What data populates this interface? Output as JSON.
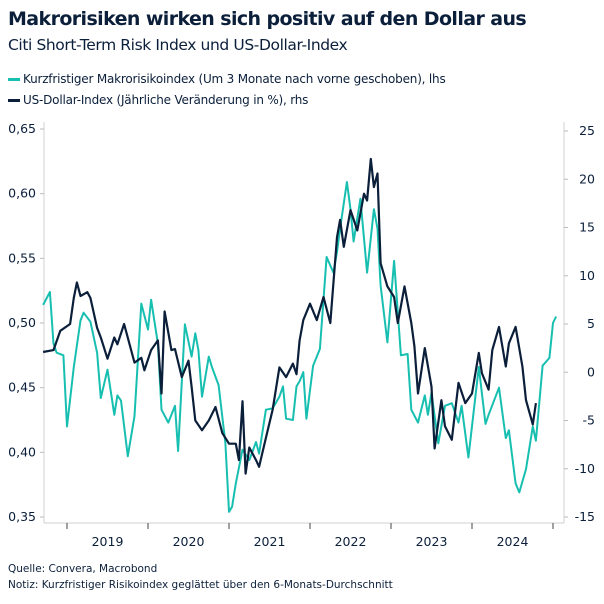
{
  "header": {
    "title": "Makrorisiken wirken sich positiv auf den Dollar aus",
    "subtitle": "Citi Short-Term Risk Index und US-Dollar-Index"
  },
  "footer": {
    "source": "Quelle: Convera, Macrobond",
    "note": "Notiz: Kurzfristiger Risikoindex geglättet über den 6-Monats-Durchschnitt"
  },
  "chart_data": {
    "type": "line",
    "title": "Makrorisiken wirken sich positiv auf den Dollar aus",
    "subtitle": "Citi Short-Term Risk Index und US-Dollar-Index",
    "legend_position": "top-left",
    "grid": false,
    "x_ticks": [
      "2019",
      "2020",
      "2021",
      "2022",
      "2023",
      "2024"
    ],
    "y_left": {
      "lim": [
        0.35,
        0.65
      ],
      "ticks": [
        "0,35",
        "0,40",
        "0,45",
        "0,50",
        "0,55",
        "0,60",
        "0,65"
      ],
      "values": [
        0.35,
        0.4,
        0.45,
        0.5,
        0.55,
        0.6,
        0.65
      ]
    },
    "y_right": {
      "lim": [
        -15,
        25
      ],
      "ticks": [
        "-15",
        "-10",
        "-5",
        "0",
        "5",
        "10",
        "15",
        "20",
        "25"
      ],
      "values": [
        -15,
        -10,
        -5,
        0,
        5,
        10,
        15,
        20,
        25
      ]
    },
    "series": [
      {
        "name": "Kurzfristiger Makrorisikoindex (Um 3 Monate nach vorne geschoben), lhs",
        "axis": "left",
        "color": "#17bfb0",
        "points": [
          [
            "2018-09-15",
            0.514
          ],
          [
            "2018-10-15",
            0.524
          ],
          [
            "2018-11-01",
            0.484
          ],
          [
            "2018-11-15",
            0.477
          ],
          [
            "2018-12-15",
            0.475
          ],
          [
            "2019-01-01",
            0.42
          ],
          [
            "2019-02-01",
            0.466
          ],
          [
            "2019-03-01",
            0.502
          ],
          [
            "2019-03-15",
            0.508
          ],
          [
            "2019-04-15",
            0.501
          ],
          [
            "2019-05-15",
            0.477
          ],
          [
            "2019-06-01",
            0.442
          ],
          [
            "2019-07-01",
            0.464
          ],
          [
            "2019-08-01",
            0.429
          ],
          [
            "2019-08-15",
            0.444
          ],
          [
            "2019-09-01",
            0.44
          ],
          [
            "2019-10-01",
            0.397
          ],
          [
            "2019-11-01",
            0.428
          ],
          [
            "2019-12-01",
            0.515
          ],
          [
            "2020-01-01",
            0.495
          ],
          [
            "2020-01-15",
            0.518
          ],
          [
            "2020-02-15",
            0.484
          ],
          [
            "2020-03-01",
            0.433
          ],
          [
            "2020-04-01",
            0.423
          ],
          [
            "2020-05-01",
            0.436
          ],
          [
            "2020-05-15",
            0.401
          ],
          [
            "2020-06-15",
            0.499
          ],
          [
            "2020-07-15",
            0.474
          ],
          [
            "2020-08-01",
            0.492
          ],
          [
            "2020-08-15",
            0.479
          ],
          [
            "2020-09-01",
            0.443
          ],
          [
            "2020-10-01",
            0.474
          ],
          [
            "2020-10-15",
            0.466
          ],
          [
            "2020-11-15",
            0.452
          ],
          [
            "2020-12-15",
            0.407
          ],
          [
            "2021-01-01",
            0.354
          ],
          [
            "2021-01-15",
            0.358
          ],
          [
            "2021-02-01",
            0.376
          ],
          [
            "2021-03-01",
            0.402
          ],
          [
            "2021-04-01",
            0.394
          ],
          [
            "2021-05-01",
            0.408
          ],
          [
            "2021-05-15",
            0.399
          ],
          [
            "2021-06-15",
            0.433
          ],
          [
            "2021-07-15",
            0.434
          ],
          [
            "2021-08-15",
            0.443
          ],
          [
            "2021-09-01",
            0.451
          ],
          [
            "2021-09-15",
            0.426
          ],
          [
            "2021-10-15",
            0.425
          ],
          [
            "2021-11-01",
            0.451
          ],
          [
            "2021-11-15",
            0.455
          ],
          [
            "2021-12-01",
            0.462
          ],
          [
            "2021-12-15",
            0.426
          ],
          [
            "2022-01-15",
            0.467
          ],
          [
            "2022-02-15",
            0.48
          ],
          [
            "2022-03-15",
            0.551
          ],
          [
            "2022-04-15",
            0.539
          ],
          [
            "2022-05-01",
            0.555
          ],
          [
            "2022-05-15",
            0.573
          ],
          [
            "2022-06-15",
            0.609
          ],
          [
            "2022-07-01",
            0.588
          ],
          [
            "2022-07-15",
            0.563
          ],
          [
            "2022-08-15",
            0.596
          ],
          [
            "2022-09-15",
            0.539
          ],
          [
            "2022-10-15",
            0.588
          ],
          [
            "2022-11-01",
            0.573
          ],
          [
            "2022-11-15",
            0.529
          ],
          [
            "2022-12-15",
            0.485
          ],
          [
            "2023-01-15",
            0.548
          ],
          [
            "2023-02-15",
            0.475
          ],
          [
            "2023-03-15",
            0.476
          ],
          [
            "2023-04-01",
            0.433
          ],
          [
            "2023-05-01",
            0.423
          ],
          [
            "2023-06-01",
            0.444
          ],
          [
            "2023-06-15",
            0.429
          ],
          [
            "2023-07-01",
            0.446
          ],
          [
            "2023-08-01",
            0.407
          ],
          [
            "2023-09-01",
            0.436
          ],
          [
            "2023-10-01",
            0.438
          ],
          [
            "2023-11-01",
            0.423
          ],
          [
            "2023-11-15",
            0.436
          ],
          [
            "2023-12-15",
            0.396
          ],
          [
            "2024-02-01",
            0.466
          ],
          [
            "2024-03-01",
            0.422
          ],
          [
            "2024-03-15",
            0.429
          ],
          [
            "2024-05-01",
            0.45
          ],
          [
            "2024-06-01",
            0.411
          ],
          [
            "2024-06-15",
            0.417
          ],
          [
            "2024-07-15",
            0.376
          ],
          [
            "2024-08-01",
            0.369
          ],
          [
            "2024-09-01",
            0.387
          ],
          [
            "2024-10-01",
            0.42
          ],
          [
            "2024-10-15",
            0.409
          ],
          [
            "2024-11-15",
            0.467
          ],
          [
            "2024-12-15",
            0.473
          ],
          [
            "2025-01-01",
            0.5
          ],
          [
            "2025-01-15",
            0.505
          ]
        ]
      },
      {
        "name": "US-Dollar-Index (Jährliche Veränderung in %), rhs",
        "axis": "right",
        "color": "#0b1f3a",
        "points": [
          [
            "2018-09-15",
            2.1
          ],
          [
            "2018-11-01",
            2.3
          ],
          [
            "2018-12-01",
            4.3
          ],
          [
            "2019-01-15",
            5.0
          ],
          [
            "2019-02-01",
            7.7
          ],
          [
            "2019-02-15",
            9.3
          ],
          [
            "2019-03-01",
            7.9
          ],
          [
            "2019-04-01",
            8.3
          ],
          [
            "2019-04-15",
            7.7
          ],
          [
            "2019-05-15",
            4.6
          ],
          [
            "2019-06-01",
            3.6
          ],
          [
            "2019-07-01",
            1.4
          ],
          [
            "2019-08-01",
            3.6
          ],
          [
            "2019-08-15",
            2.9
          ],
          [
            "2019-09-15",
            5.0
          ],
          [
            "2019-11-01",
            1.0
          ],
          [
            "2019-12-01",
            1.5
          ],
          [
            "2019-12-15",
            0.2
          ],
          [
            "2020-01-15",
            2.3
          ],
          [
            "2020-02-15",
            3.3
          ],
          [
            "2020-03-01",
            -2.2
          ],
          [
            "2020-03-15",
            6.3
          ],
          [
            "2020-04-15",
            2.3
          ],
          [
            "2020-05-01",
            2.4
          ],
          [
            "2020-06-01",
            -0.5
          ],
          [
            "2020-07-01",
            1.2
          ],
          [
            "2020-07-15",
            -1.5
          ],
          [
            "2020-08-01",
            -5.0
          ],
          [
            "2020-09-01",
            -6.0
          ],
          [
            "2020-10-01",
            -5.0
          ],
          [
            "2020-11-01",
            -3.6
          ],
          [
            "2020-12-01",
            -6.3
          ],
          [
            "2021-01-01",
            -7.4
          ],
          [
            "2021-02-01",
            -7.4
          ],
          [
            "2021-02-15",
            -9.1
          ],
          [
            "2021-03-01",
            -3.0
          ],
          [
            "2021-03-15",
            -10.5
          ],
          [
            "2021-04-01",
            -7.8
          ],
          [
            "2021-05-01",
            -9.1
          ],
          [
            "2021-05-15",
            -9.8
          ],
          [
            "2021-06-15",
            -6.8
          ],
          [
            "2021-07-15",
            -3.9
          ],
          [
            "2021-08-15",
            0.5
          ],
          [
            "2021-09-15",
            -0.5
          ],
          [
            "2021-10-15",
            0.9
          ],
          [
            "2021-11-01",
            -0.2
          ],
          [
            "2021-11-15",
            3.3
          ],
          [
            "2021-12-01",
            5.4
          ],
          [
            "2022-01-01",
            7.1
          ],
          [
            "2022-02-01",
            5.4
          ],
          [
            "2022-03-01",
            7.8
          ],
          [
            "2022-04-01",
            5.1
          ],
          [
            "2022-05-01",
            14.0
          ],
          [
            "2022-05-15",
            15.8
          ],
          [
            "2022-06-01",
            13.0
          ],
          [
            "2022-07-01",
            16.8
          ],
          [
            "2022-08-01",
            14.7
          ],
          [
            "2022-09-01",
            18.5
          ],
          [
            "2022-09-15",
            17.8
          ],
          [
            "2022-10-01",
            22.1
          ],
          [
            "2022-10-15",
            19.2
          ],
          [
            "2022-11-01",
            20.6
          ],
          [
            "2022-11-15",
            11.3
          ],
          [
            "2022-12-15",
            8.9
          ],
          [
            "2023-01-15",
            7.8
          ],
          [
            "2023-02-01",
            5.1
          ],
          [
            "2023-03-01",
            8.9
          ],
          [
            "2023-04-01",
            5.1
          ],
          [
            "2023-04-15",
            2.7
          ],
          [
            "2023-05-01",
            -2.2
          ],
          [
            "2023-06-01",
            2.5
          ],
          [
            "2023-07-01",
            -1.5
          ],
          [
            "2023-07-15",
            -7.9
          ],
          [
            "2023-08-15",
            -2.9
          ],
          [
            "2023-09-01",
            -5.6
          ],
          [
            "2023-10-01",
            -7.0
          ],
          [
            "2023-11-01",
            -1.1
          ],
          [
            "2023-12-01",
            -3.2
          ],
          [
            "2024-01-01",
            -2.2
          ],
          [
            "2024-02-01",
            2.0
          ],
          [
            "2024-02-15",
            -0.1
          ],
          [
            "2024-03-15",
            -1.8
          ],
          [
            "2024-04-01",
            2.3
          ],
          [
            "2024-05-01",
            4.7
          ],
          [
            "2024-06-01",
            0.6
          ],
          [
            "2024-06-15",
            3.0
          ],
          [
            "2024-07-15",
            4.7
          ],
          [
            "2024-08-15",
            0.6
          ],
          [
            "2024-09-01",
            -2.9
          ],
          [
            "2024-10-01",
            -5.4
          ],
          [
            "2024-10-15",
            -3.2
          ]
        ]
      }
    ]
  }
}
